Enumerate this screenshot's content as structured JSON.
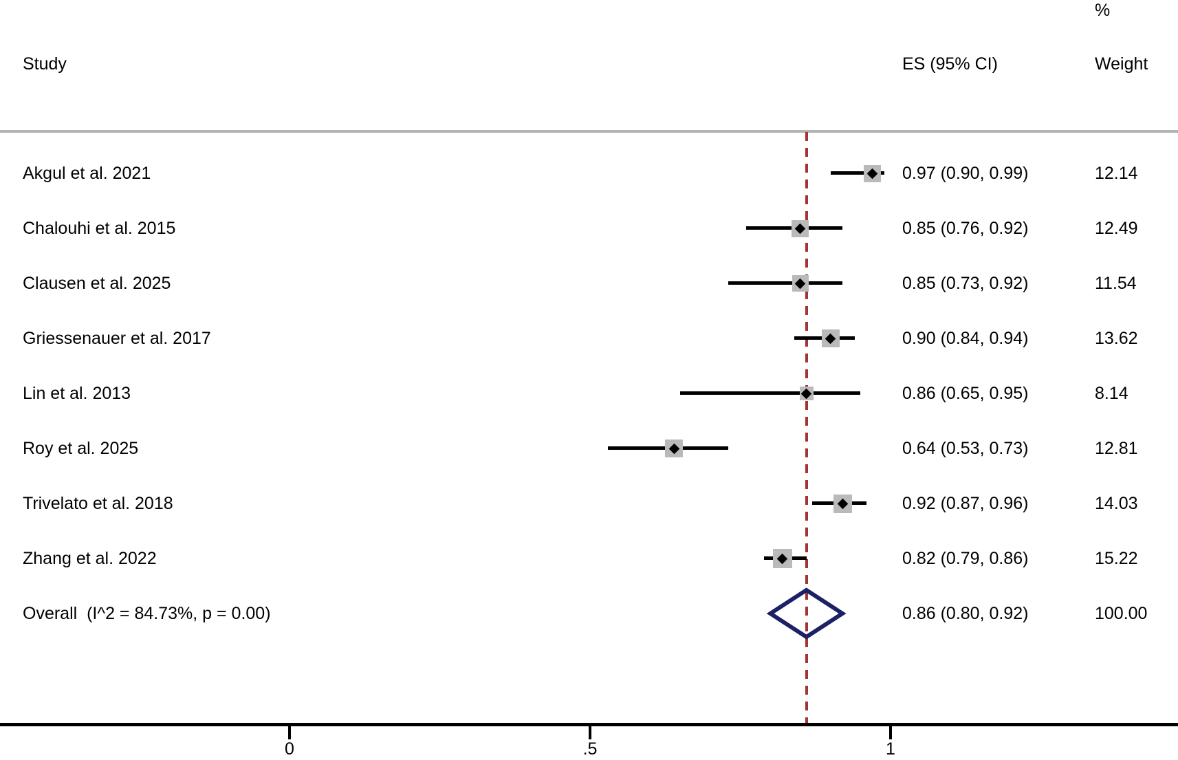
{
  "header": {
    "study": "Study",
    "es": "ES (95% CI)",
    "weight_pct": "%",
    "weight": "Weight"
  },
  "chart_data": {
    "type": "forest",
    "title": "",
    "xlabel": "",
    "axis": {
      "range": [
        -0.48,
        1.48
      ],
      "ticks": [
        {
          "value": 0,
          "label": "0"
        },
        {
          "value": 0.5,
          "label": ".5"
        },
        {
          "value": 1,
          "label": "1"
        }
      ]
    },
    "reference_line": {
      "value": 0.86
    },
    "studies": [
      {
        "name": "Akgul et al. 2021",
        "es": 0.97,
        "lo": 0.9,
        "hi": 0.99,
        "es_label": "0.97 (0.90, 0.99)",
        "weight": 12.14,
        "weight_label": "12.14"
      },
      {
        "name": "Chalouhi et al. 2015",
        "es": 0.85,
        "lo": 0.76,
        "hi": 0.92,
        "es_label": "0.85 (0.76, 0.92)",
        "weight": 12.49,
        "weight_label": "12.49"
      },
      {
        "name": "Clausen et al. 2025",
        "es": 0.85,
        "lo": 0.73,
        "hi": 0.92,
        "es_label": "0.85 (0.73, 0.92)",
        "weight": 11.54,
        "weight_label": "11.54"
      },
      {
        "name": "Griessenauer et al. 2017",
        "es": 0.9,
        "lo": 0.84,
        "hi": 0.94,
        "es_label": "0.90 (0.84, 0.94)",
        "weight": 13.62,
        "weight_label": "13.62"
      },
      {
        "name": "Lin et al. 2013",
        "es": 0.86,
        "lo": 0.65,
        "hi": 0.95,
        "es_label": "0.86 (0.65, 0.95)",
        "weight": 8.14,
        "weight_label": "8.14"
      },
      {
        "name": "Roy et al. 2025",
        "es": 0.64,
        "lo": 0.53,
        "hi": 0.73,
        "es_label": "0.64 (0.53, 0.73)",
        "weight": 12.81,
        "weight_label": "12.81"
      },
      {
        "name": "Trivelato et al. 2018",
        "es": 0.92,
        "lo": 0.87,
        "hi": 0.96,
        "es_label": "0.92 (0.87, 0.96)",
        "weight": 14.03,
        "weight_label": "14.03"
      },
      {
        "name": "Zhang et al. 2022",
        "es": 0.82,
        "lo": 0.79,
        "hi": 0.86,
        "es_label": "0.82 (0.79, 0.86)",
        "weight": 15.22,
        "weight_label": "15.22"
      }
    ],
    "overall": {
      "name": "Overall  (I^2 = 84.73%, p = 0.00)",
      "es": 0.86,
      "lo": 0.8,
      "hi": 0.92,
      "es_label": "0.86 (0.80, 0.92)",
      "weight_label": "100.00"
    },
    "colors": {
      "reference": "#9f3632",
      "diamond": "#1c2166",
      "square": "#bababa",
      "ci": "#000000",
      "rule": "#b3b3b3"
    }
  }
}
